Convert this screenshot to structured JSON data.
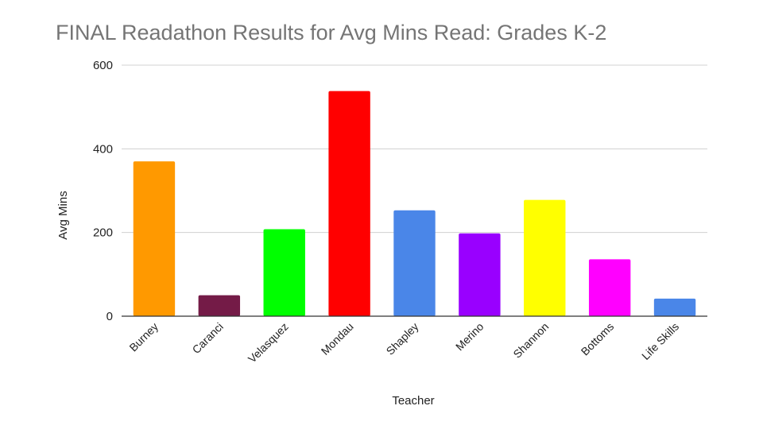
{
  "chart_data": {
    "type": "bar",
    "title": "FINAL Readathon Results for Avg Mins Read: Grades K-2",
    "xlabel": "Teacher",
    "ylabel": "Avg Mins",
    "ylim": [
      0,
      600
    ],
    "yticks": [
      "0",
      "200",
      "400",
      "600"
    ],
    "grid": true,
    "legend": "none",
    "categories": [
      "Burney",
      "Caranci",
      "Velasquez",
      "Mondau",
      "Shapley",
      "Merino",
      "Shannon",
      "Bottoms",
      "Life Skills"
    ],
    "values": [
      370,
      50,
      208,
      538,
      253,
      198,
      278,
      136,
      42
    ],
    "colors": [
      "#ff9900",
      "#741b47",
      "#00ff00",
      "#ff0000",
      "#4a86e8",
      "#9900ff",
      "#ffff00",
      "#ff00ff",
      "#4a86e8"
    ]
  }
}
